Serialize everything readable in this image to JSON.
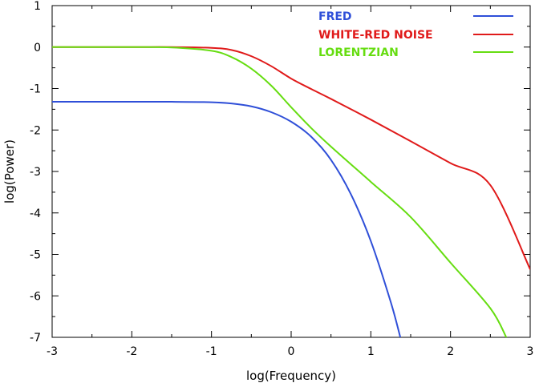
{
  "chart_data": {
    "type": "line",
    "title": "",
    "xlabel": "log(Frequency)",
    "ylabel": "log(Power)",
    "xlim": [
      -3,
      3
    ],
    "ylim": [
      -7,
      1
    ],
    "xticks": [
      -3,
      -2,
      -1,
      0,
      1,
      2,
      3
    ],
    "yticks": [
      1,
      0,
      -1,
      -2,
      -3,
      -4,
      -5,
      -6,
      -7
    ],
    "xtick_labels": [
      "-3",
      "-2",
      "-1",
      "0",
      "1",
      "2",
      "3"
    ],
    "ytick_labels": [
      "1",
      "0",
      "-1",
      "-2",
      "-3",
      "-4",
      "-5",
      "-6",
      "-7"
    ],
    "grid": false,
    "legend_position": "top-right",
    "series": [
      {
        "name": "FRED",
        "color": "#2f4fd8",
        "x": [
          -3,
          -2,
          -1.5,
          -1,
          -0.75,
          -0.5,
          -0.25,
          0,
          0.25,
          0.5,
          0.75,
          1,
          1.25,
          1.37
        ],
        "y": [
          -1.32,
          -1.32,
          -1.32,
          -1.33,
          -1.36,
          -1.43,
          -1.57,
          -1.8,
          -2.16,
          -2.72,
          -3.55,
          -4.68,
          -6.15,
          -7.0
        ]
      },
      {
        "name": "WHITE-RED NOISE",
        "color": "#e01a1a",
        "x": [
          -3,
          -2,
          -1.5,
          -1,
          -0.75,
          -0.5,
          -0.25,
          0,
          0.25,
          0.5,
          1,
          1.5,
          2,
          2.5,
          3
        ],
        "y": [
          0,
          0,
          0,
          -0.02,
          -0.07,
          -0.22,
          -0.46,
          -0.76,
          -1.01,
          -1.25,
          -1.75,
          -2.27,
          -2.8,
          -3.33,
          -5.36
        ]
      },
      {
        "name": "LORENTZIAN",
        "color": "#66dd11",
        "x": [
          -3,
          -2,
          -1.5,
          -1,
          -0.75,
          -0.5,
          -0.25,
          0,
          0.25,
          0.5,
          1,
          1.5,
          2,
          2.5,
          2.7
        ],
        "y": [
          0,
          0,
          -0.01,
          -0.09,
          -0.24,
          -0.52,
          -0.93,
          -1.45,
          -1.95,
          -2.4,
          -3.25,
          -4.1,
          -5.2,
          -6.3,
          -7.0
        ]
      }
    ]
  }
}
